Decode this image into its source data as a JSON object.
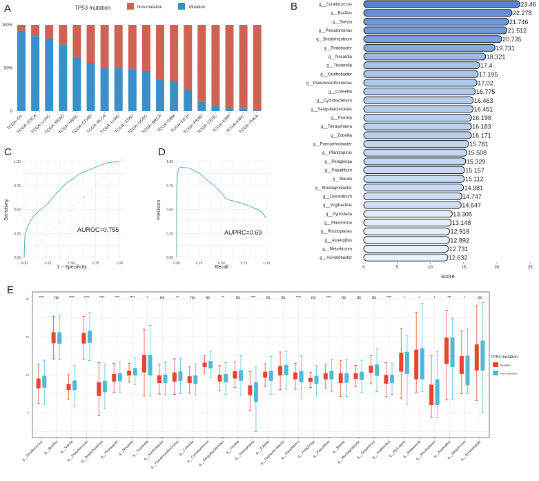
{
  "colors": {
    "a_mutation": "#3a8fc8",
    "a_nonmutation": "#cd6352",
    "curve": "#4fb3a9",
    "e_mutation": "#e8452f",
    "e_nonmutation": "#4dbbd5",
    "b_low": "#eaf4fe",
    "b_high": "#5585cf"
  },
  "chart_data": [
    {
      "panel": "A",
      "type": "bar",
      "stacked": true,
      "legend_title": "TP53 mutation",
      "legend_position": "top",
      "categories": [
        "TCGA−OV",
        "TCGA−ESCA",
        "TCGA−LUSC",
        "TCGA−READ",
        "TCGA−HNSC",
        "TCGA−COAD",
        "TCGA−BLCA",
        "TCGA−LUAD",
        "TCGA−STAD",
        "TCGA−UCEC",
        "TCGA−BRCA",
        "TCGA−GBM",
        "TCGA−KICH",
        "TCGA−PRAD",
        "TCGA−CESC",
        "TCGA−KIRP",
        "TCGA−KIRC",
        "TCGA−THCA"
      ],
      "series": [
        {
          "name": "Mutation",
          "values": [
            0.93,
            0.87,
            0.84,
            0.77,
            0.62,
            0.56,
            0.5,
            0.5,
            0.48,
            0.46,
            0.37,
            0.34,
            0.24,
            0.11,
            0.07,
            0.03,
            0.03,
            0.01
          ]
        },
        {
          "name": "Non-mutation",
          "values": [
            0.07,
            0.13,
            0.16,
            0.23,
            0.38,
            0.44,
            0.5,
            0.5,
            0.52,
            0.54,
            0.63,
            0.66,
            0.76,
            0.89,
            0.93,
            0.97,
            0.97,
            0.99
          ]
        }
      ],
      "yticks": [
        "0",
        "50%",
        "100%"
      ],
      "ylim": [
        0,
        1
      ]
    },
    {
      "panel": "B",
      "type": "bar",
      "orientation": "horizontal",
      "categories": [
        "g__Corallococcus",
        "g__Bacillus",
        "g__Saezia",
        "g__Pseudomonas",
        "g__Bradyrhizobium",
        "g__Pedobacter",
        "g__Nocardia",
        "g__Tissierella",
        "g__Xanthobacter",
        "g__Pseudoxanthomonas",
        "g__Colwellia",
        "g__Cyclobacterium",
        "g__Sanguibacteroides",
        "g__Frankia",
        "g__Tetrasphaera",
        "g__Zobellia",
        "g__Paenarthrobacter",
        "g__Planctopirus",
        "g__Pelagivirga",
        "g__Paludifilum",
        "g__Blautia",
        "g__Mucilaginibacter",
        "g__Oceanibium",
        "g__Virgibacillus",
        "g__Pyricularia",
        "g__Malassezia",
        "g__Rhodoplanes",
        "g__Aspergillus",
        "g__Metarhizium",
        "g__Acinetobacter"
      ],
      "values": [
        23.46,
        22.278,
        21.746,
        21.512,
        20.735,
        19.731,
        18.321,
        17.4,
        17.195,
        17.02,
        16.775,
        16.463,
        16.451,
        16.198,
        16.183,
        16.171,
        15.781,
        15.508,
        15.329,
        15.157,
        15.112,
        14.981,
        14.747,
        14.647,
        13.305,
        13.148,
        12.919,
        12.892,
        12.731,
        12.632
      ],
      "labels": [
        "23.46",
        "22.278",
        "21.746",
        "21.512",
        "20.735",
        "19.731",
        "18.321",
        "17.4",
        "17.195",
        "17.02",
        "16.775",
        "16.463",
        "16.451",
        "16.198",
        "16.183",
        "16.171",
        "15.781",
        "15.508",
        "15.329",
        "15.157",
        "15.112",
        "14.981",
        "14.747",
        "14.647",
        "13.305",
        "13.148",
        "12.919",
        "12.892",
        "12.731",
        "12.632"
      ],
      "xlabel": "score",
      "xticks": [
        "0",
        "5",
        "10",
        "15",
        "20",
        "25"
      ],
      "xlim": [
        0,
        25
      ]
    },
    {
      "panel": "C",
      "type": "line",
      "xlabel": "1 − Specificity",
      "ylabel": "Sensitivity",
      "annotation": "AUROC=0.755",
      "reference": "diagonal",
      "x": [
        0,
        0.005,
        0.01,
        0.03,
        0.06,
        0.1,
        0.15,
        0.2,
        0.25,
        0.3,
        0.35,
        0.4,
        0.45,
        0.5,
        0.55,
        0.6,
        0.65,
        0.7,
        0.75,
        0.8,
        0.85,
        0.9,
        1
      ],
      "y": [
        0,
        0.15,
        0.24,
        0.3,
        0.37,
        0.43,
        0.48,
        0.52,
        0.56,
        0.62,
        0.68,
        0.73,
        0.78,
        0.81,
        0.85,
        0.88,
        0.9,
        0.92,
        0.94,
        0.96,
        0.98,
        0.99,
        1
      ],
      "xticks": [
        "0.00",
        "0.25",
        "0.50",
        "0.75",
        "1.00"
      ],
      "yticks": [
        "0.00",
        "0.25",
        "0.50",
        "0.75",
        "1.00"
      ],
      "xlim": [
        0,
        1
      ],
      "ylim": [
        0,
        1
      ]
    },
    {
      "panel": "D",
      "type": "line",
      "xlabel": "Recall",
      "ylabel": "Precision",
      "annotation": "AUPRC=0.69",
      "baseline": 0.4,
      "x": [
        0,
        0,
        0.005,
        0.01,
        0.02,
        0.04,
        0.1,
        0.15,
        0.2,
        0.25,
        0.3,
        0.35,
        0.4,
        0.45,
        0.5,
        0.55,
        0.6,
        0.7,
        0.8,
        0.9,
        0.95,
        1
      ],
      "y": [
        0,
        0.7,
        0.8,
        0.88,
        0.92,
        0.94,
        0.935,
        0.93,
        0.9,
        0.88,
        0.84,
        0.8,
        0.76,
        0.72,
        0.67,
        0.61,
        0.595,
        0.57,
        0.54,
        0.5,
        0.47,
        0.41
      ],
      "xticks": [
        "0.00",
        "0.25",
        "0.50",
        "0.75",
        "1.00"
      ],
      "yticks": [
        "0.00",
        "0.25",
        "0.50",
        "0.75",
        "1.00"
      ],
      "xlim": [
        0,
        1
      ],
      "ylim": [
        0,
        1
      ]
    },
    {
      "panel": "E",
      "type": "boxplot",
      "legend_title": "TP53 mutation",
      "legend_position": "right",
      "series_names": [
        "Mutation",
        "Non-mutation"
      ],
      "yticks": [
        "5",
        "10",
        "15",
        "20"
      ],
      "ylim": [
        1.7,
        20.9
      ],
      "categories": [
        "g__Corallococcus",
        "g__Bacillus",
        "g__Saezia",
        "g__Pseudomonas",
        "g__Bradyrhizobium",
        "g__Pedobacter",
        "g__Nocardia",
        "g__Tissierella",
        "g__Xanthobacter",
        "g__Pseudoxanthomonas",
        "g__Colwellia",
        "g__Cyclobacterium",
        "g__Sanguibacteroides",
        "g__Frankia",
        "g__Tetrasphaera",
        "g__Zobellia",
        "g__Paenarthrobacter",
        "g__Planctopirus",
        "g__Pelagivirga",
        "g__Paludifilum",
        "g__Blautia",
        "g__Mucilaginibacter",
        "g__Oceanibium",
        "g__Virgibacillus",
        "g__Pyricularia",
        "g__Malassezia",
        "g__Rhodoplanes",
        "g__Aspergillus",
        "g__Metarhizium",
        "g__Acinetobacter"
      ],
      "significance": [
        "****",
        "ns",
        "****",
        "****",
        "****",
        "****",
        "****",
        "*",
        "ns",
        "**",
        "ns",
        "ns",
        "**",
        "ns",
        "****",
        "ns",
        "ns",
        "****",
        "ns",
        "****",
        "ns",
        "ns",
        "ns",
        "****",
        "*",
        "*",
        "*",
        "***",
        "*",
        "ns"
      ],
      "mutation": [
        [
          6.2,
          8.2,
          8.8,
          9.5,
          11.36
        ],
        [
          12.1,
          14.15,
          14.9,
          15.6,
          17.7
        ],
        [
          6.8,
          8,
          8.4,
          8.8,
          10
        ],
        [
          12.06,
          14.1,
          15,
          15.5,
          17.7
        ],
        [
          4.6,
          7.2,
          8.2,
          9,
          11.6
        ],
        [
          7.7,
          9.1,
          9.6,
          10.1,
          11.5
        ],
        [
          9,
          9.9,
          10.2,
          10.55,
          11.5
        ],
        [
          7.2,
          10.3,
          11.5,
          12.6,
          16
        ],
        [
          7.45,
          8.9,
          9.4,
          9.9,
          11.4
        ],
        [
          7.4,
          9.1,
          9.7,
          10.3,
          12.1
        ],
        [
          7.6,
          8.9,
          9.3,
          9.8,
          11.06
        ],
        [
          10.2,
          11,
          11.3,
          11.6,
          12.5
        ],
        [
          7.9,
          9.1,
          9.5,
          10,
          11.2
        ],
        [
          8.3,
          9.5,
          10,
          10.45,
          11.7
        ],
        [
          5.3,
          7.3,
          7.9,
          8.6,
          10.4
        ],
        [
          8.45,
          9.6,
          10,
          10.4,
          11.45
        ],
        [
          8.03,
          9.9,
          10.5,
          11.15,
          13
        ],
        [
          8.1,
          9.4,
          9.9,
          10.3,
          11.5
        ],
        [
          8.3,
          9.03,
          9.3,
          9.6,
          10.3
        ],
        [
          8.2,
          9.4,
          9.8,
          10.2,
          11.4
        ],
        [
          7.15,
          8.9,
          9.5,
          10.2,
          11.9
        ],
        [
          8.4,
          9.45,
          9.8,
          10.2,
          11.24
        ],
        [
          8.9,
          10.24,
          10.7,
          11.2,
          12.5
        ],
        [
          7.1,
          8.8,
          9.3,
          9.97,
          11.6
        ],
        [
          6.9,
          10.4,
          11.6,
          12.9,
          16.06
        ],
        [
          7.7,
          9.4,
          11.3,
          13.3,
          18.2
        ],
        [
          4.4,
          6,
          7.1,
          8.7,
          12.5
        ],
        [
          6.7,
          11.4,
          13.3,
          14.9,
          18.5
        ],
        [
          7.5,
          10.1,
          11.4,
          12.45,
          15.8
        ],
        [
          6.6,
          10.55,
          12.3,
          14,
          19.1
        ]
      ],
      "non_mutation": [
        [
          6.1,
          8.3,
          9.3,
          9.85,
          11.9
        ],
        [
          12,
          14.06,
          14.9,
          15.6,
          17.8
        ],
        [
          5.85,
          7.97,
          8.5,
          9.24,
          11.2
        ],
        [
          11.85,
          14.2,
          15.1,
          15.8,
          18.2
        ],
        [
          5.5,
          7.7,
          8.5,
          9.2,
          11.4
        ],
        [
          7.7,
          9.15,
          9.8,
          10.2,
          11.7
        ],
        [
          8.7,
          9.9,
          10.4,
          10.9,
          12.2
        ],
        [
          7.2,
          9.9,
          11.3,
          12.6,
          16.5
        ],
        [
          7.3,
          8.9,
          9.4,
          10,
          11.6
        ],
        [
          7.5,
          9.2,
          9.8,
          10.45,
          12.2
        ],
        [
          7.3,
          8.8,
          9.3,
          9.9,
          11.45
        ],
        [
          9.6,
          10.85,
          11.3,
          11.8,
          13.1
        ],
        [
          7.4,
          9,
          9.5,
          10.1,
          11.6
        ],
        [
          7.3,
          9.2,
          9.9,
          10.6,
          12.6
        ],
        [
          2.5,
          6.4,
          7.5,
          9,
          11.1
        ],
        [
          7.4,
          9.2,
          10,
          10.5,
          12.4
        ],
        [
          8.1,
          9.94,
          10.6,
          11.3,
          13.1
        ],
        [
          7,
          9,
          9.8,
          10.5,
          12.5
        ],
        [
          7.3,
          8.8,
          9.3,
          9.85,
          11.2
        ],
        [
          7.8,
          9.4,
          9.9,
          10.5,
          12.06
        ],
        [
          7.15,
          8.94,
          9.6,
          10.2,
          12
        ],
        [
          7.7,
          9.3,
          9.8,
          10.4,
          11.9
        ],
        [
          7.76,
          9.85,
          10.7,
          11.36,
          13.4
        ],
        [
          7.4,
          8.9,
          9.4,
          9.97,
          11.5
        ],
        [
          6.1,
          10.1,
          11.6,
          13.03,
          15.2
        ],
        [
          7.8,
          9.4,
          11.5,
          13.5,
          19.4
        ],
        [
          4.4,
          6,
          7.6,
          9.4,
          13.1
        ],
        [
          6.7,
          11,
          12.9,
          14.9,
          17.45
        ],
        [
          7.5,
          8.6,
          10.6,
          12.5,
          16.06
        ],
        [
          5,
          10.55,
          12.6,
          14.5,
          19.5
        ]
      ]
    }
  ],
  "panel_labels": [
    "A",
    "B",
    "C",
    "D",
    "E"
  ]
}
